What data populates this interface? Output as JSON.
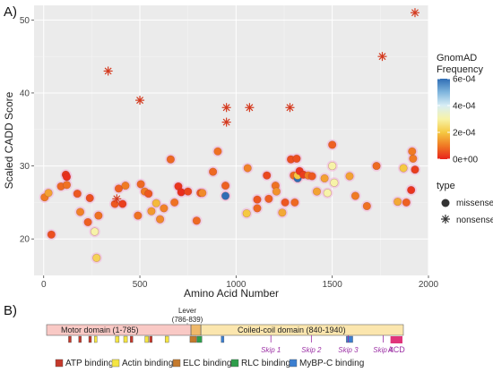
{
  "panels": {
    "a": "A)",
    "b": "B)"
  },
  "chart_data": {
    "type": "scatter",
    "xlabel": "Amino Acid Number",
    "ylabel": "Scaled CADD Score",
    "xlim": [
      -50,
      2000
    ],
    "ylim": [
      15,
      52
    ],
    "x_ticks": [
      0,
      500,
      1000,
      1500,
      2000
    ],
    "y_ticks": [
      20,
      30,
      40,
      50
    ],
    "grid": true,
    "color_legend": {
      "title": [
        "GnomAD",
        "Frequency"
      ],
      "labels": [
        "6e-04",
        "4e-04",
        "2e-04",
        "0e+00"
      ],
      "min": 0,
      "max": 0.0006,
      "stops": [
        "#e8231c",
        "#f07a24",
        "#f5c942",
        "#f7f3a8",
        "#d8eef5",
        "#7fb5dd",
        "#2f6db5"
      ]
    },
    "shape_legend": {
      "title": "type",
      "entries": [
        {
          "label": "missense",
          "shape": "circle"
        },
        {
          "label": "nonsense",
          "shape": "asterisk"
        }
      ]
    },
    "series": [
      {
        "type": "missense",
        "points": [
          [
            5,
            25.7,
            0.0001
          ],
          [
            25,
            26.3,
            0.00015
          ],
          [
            40,
            20.6,
            5e-05
          ],
          [
            90,
            27.2,
            8e-05
          ],
          [
            115,
            28.8,
            2e-05
          ],
          [
            120,
            28.5,
            1e-05
          ],
          [
            120,
            27.4,
            9e-05
          ],
          [
            175,
            26.2,
            6e-05
          ],
          [
            190,
            23.7,
            0.00011
          ],
          [
            230,
            22.3,
            7e-05
          ],
          [
            240,
            25.6,
            5e-05
          ],
          [
            265,
            21.0,
            0.0003
          ],
          [
            275,
            17.4,
            0.00022
          ],
          [
            285,
            23.2,
            9e-05
          ],
          [
            370,
            24.8,
            6e-05
          ],
          [
            390,
            26.9,
            7e-05
          ],
          [
            410,
            24.8,
            3e-05
          ],
          [
            425,
            27.3,
            0.0001
          ],
          [
            490,
            23.2,
            9e-05
          ],
          [
            505,
            27.5,
            8e-05
          ],
          [
            525,
            26.5,
            0.0001
          ],
          [
            545,
            26.2,
            6e-05
          ],
          [
            560,
            23.8,
            0.00014
          ],
          [
            585,
            24.9,
            0.00018
          ],
          [
            605,
            22.7,
            0.00012
          ],
          [
            625,
            24.2,
            0.00011
          ],
          [
            660,
            30.9,
            8e-05
          ],
          [
            680,
            25.0,
            9e-05
          ],
          [
            700,
            27.2,
            2e-05
          ],
          [
            715,
            26.4,
            1e-05
          ],
          [
            750,
            26.5,
            4e-05
          ],
          [
            795,
            22.5,
            8e-05
          ],
          [
            815,
            26.3,
            6e-05
          ],
          [
            825,
            26.3,
            0.00012
          ],
          [
            880,
            29.2,
            8e-05
          ],
          [
            905,
            32.0,
            9e-05
          ],
          [
            945,
            27.3,
            7e-05
          ],
          [
            945,
            25.9,
            0.0006
          ],
          [
            1055,
            23.5,
            0.0002
          ],
          [
            1060,
            29.7,
            0.00011
          ],
          [
            1110,
            24.2,
            8e-05
          ],
          [
            1110,
            25.4,
            6e-05
          ],
          [
            1160,
            28.7,
            4e-05
          ],
          [
            1170,
            25.5,
            7e-05
          ],
          [
            1205,
            27.3,
            9e-05
          ],
          [
            1210,
            26.5,
            0.00013
          ],
          [
            1240,
            23.6,
            0.00016
          ],
          [
            1255,
            25.0,
            6e-05
          ],
          [
            1285,
            30.9,
            5e-05
          ],
          [
            1300,
            28.7,
            8e-05
          ],
          [
            1305,
            25.0,
            8e-05
          ],
          [
            1315,
            31.0,
            5e-05
          ],
          [
            1320,
            28.3,
            0.0006
          ],
          [
            1320,
            28.7,
            0.0002
          ],
          [
            1330,
            29.3,
            2e-05
          ],
          [
            1350,
            28.8,
            3e-05
          ],
          [
            1375,
            28.7,
            0.0001
          ],
          [
            1395,
            28.6,
            6e-05
          ],
          [
            1420,
            26.5,
            0.00015
          ],
          [
            1460,
            28.3,
            0.00015
          ],
          [
            1475,
            26.3,
            0.0003
          ],
          [
            1500,
            32.9,
            7e-05
          ],
          [
            1500,
            30.0,
            0.0003
          ],
          [
            1510,
            27.7,
            0.0003
          ],
          [
            1590,
            28.6,
            0.00015
          ],
          [
            1620,
            25.9,
            0.0001
          ],
          [
            1680,
            24.5,
            9e-05
          ],
          [
            1730,
            30.0,
            8e-05
          ],
          [
            1840,
            25.1,
            0.00016
          ],
          [
            1870,
            29.7,
            0.0002
          ],
          [
            1885,
            25.0,
            7e-05
          ],
          [
            1910,
            26.7,
            2e-05
          ],
          [
            1915,
            32.0,
            0.0001
          ],
          [
            1920,
            31.0,
            0.0001
          ],
          [
            1930,
            29.5,
            3e-05
          ]
        ]
      },
      {
        "type": "nonsense",
        "points": [
          [
            335,
            43.0
          ],
          [
            380,
            25.5
          ],
          [
            500,
            39.0
          ],
          [
            950,
            38.0
          ],
          [
            950,
            36.0
          ],
          [
            1070,
            38.0
          ],
          [
            1280,
            38.0
          ],
          [
            1760,
            45.0
          ],
          [
            1930,
            51.0
          ]
        ]
      }
    ]
  },
  "protein_map": {
    "lever_label": [
      "Lever",
      "(786-839)"
    ],
    "motor_label": "Motor domain (1-785)",
    "coil_label": "Coiled-coil domain (840-1940)",
    "total_length": 1940,
    "domains": [
      {
        "name": "motor",
        "start": 1,
        "end": 785,
        "color": "#f9c9c5"
      },
      {
        "name": "lever",
        "start": 786,
        "end": 839,
        "color": "#f0b96a"
      },
      {
        "name": "coil",
        "start": 840,
        "end": 1940,
        "color": "#fbe6ae"
      }
    ],
    "binding_sites": [
      {
        "kind": "ATP",
        "start": 120,
        "end": 135
      },
      {
        "kind": "ATP",
        "start": 175,
        "end": 185
      },
      {
        "kind": "ATP",
        "start": 230,
        "end": 240
      },
      {
        "kind": "ATP",
        "start": 455,
        "end": 468
      },
      {
        "kind": "ATP",
        "start": 560,
        "end": 575
      },
      {
        "kind": "Actin",
        "start": 260,
        "end": 275
      },
      {
        "kind": "Actin",
        "start": 375,
        "end": 395
      },
      {
        "kind": "Actin",
        "start": 420,
        "end": 440
      },
      {
        "kind": "Actin",
        "start": 535,
        "end": 555
      },
      {
        "kind": "Actin",
        "start": 645,
        "end": 665
      },
      {
        "kind": "ELC",
        "start": 780,
        "end": 815
      },
      {
        "kind": "RLC",
        "start": 818,
        "end": 845
      },
      {
        "kind": "MyBP-C",
        "start": 950,
        "end": 965
      },
      {
        "kind": "MyBP-C",
        "start": 1630,
        "end": 1665
      }
    ],
    "skips": [
      {
        "label": "Skip 1",
        "pos": 1220
      },
      {
        "label": "Skip 2",
        "pos": 1440
      },
      {
        "label": "Skip 3",
        "pos": 1640
      },
      {
        "label": "Skip 4",
        "pos": 1830
      }
    ],
    "aco": {
      "label": "ACD",
      "start": 1870,
      "end": 1935,
      "color": "#e0347a"
    },
    "legend": [
      {
        "label": "ATP binding",
        "color": "#c4392b"
      },
      {
        "label": "Actin binding",
        "color": "#f4e542"
      },
      {
        "label": "ELC binding",
        "color": "#c47a2c"
      },
      {
        "label": "RLC binding",
        "color": "#2e9e4b"
      },
      {
        "label": "MyBP-C binding",
        "color": "#3b7fd0"
      }
    ]
  }
}
